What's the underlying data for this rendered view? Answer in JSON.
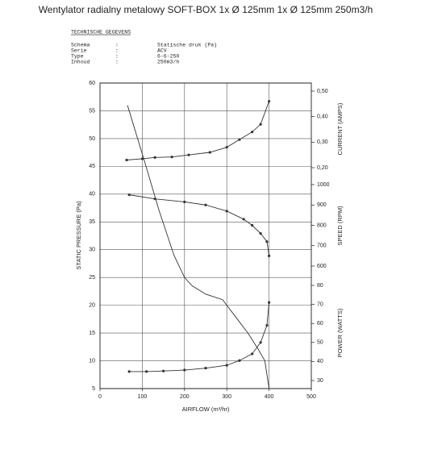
{
  "chart_data": {
    "type": "line",
    "title": "Wentylator radialny metalowy SOFT-BOX 1x Ø 125mm 1x Ø 125mm 250m3/h",
    "header": {
      "heading": "TECHNISCHE GEGEVENS",
      "rows": [
        [
          "Schema",
          ":",
          "Statische druk (Pa)"
        ],
        [
          "Serie",
          ":",
          "ACV"
        ],
        [
          "Type",
          ":",
          "6-6-250"
        ],
        [
          "Inhoud",
          ":",
          "250m3/h"
        ]
      ]
    },
    "xlabel": "AIRFLOW (m³/hr)",
    "ylabel": "STATIC PRESSURE (Pa)",
    "xlim": [
      0,
      500
    ],
    "xticks": [
      0,
      100,
      200,
      300,
      400,
      500
    ],
    "ylim": [
      5,
      60
    ],
    "yticks": [
      5,
      10,
      15,
      20,
      25,
      30,
      35,
      40,
      45,
      50,
      55,
      60
    ],
    "grid": true,
    "right_axes": [
      {
        "id": "current",
        "label": "CURRENT (AMPS)",
        "lim": [
          0.2,
          0.5
        ],
        "ticks": [
          {
            "value": 0.2,
            "label": "0,20"
          },
          {
            "value": 0.3,
            "label": "0,30"
          },
          {
            "value": 0.4,
            "label": "0,40"
          },
          {
            "value": 0.5,
            "label": "0,50"
          }
        ]
      },
      {
        "id": "speed",
        "label": "SPEED (RPM)",
        "lim": [
          600,
          1000
        ],
        "ticks": [
          600,
          700,
          800,
          900,
          1000
        ]
      },
      {
        "id": "power",
        "label": "POWER (WATTS)",
        "lim": [
          30,
          80
        ],
        "ticks": [
          30,
          40,
          50,
          60,
          70,
          80
        ]
      }
    ],
    "series": [
      {
        "axis": "y",
        "color": "#333",
        "markers": false,
        "x": [
          65,
          105,
          140,
          175,
          200,
          218,
          250,
          290,
          320,
          350,
          375,
          390,
          400
        ],
        "values": [
          56,
          46,
          37,
          29,
          25,
          23.5,
          22,
          21,
          18,
          15,
          12,
          10,
          5
        ]
      },
      {
        "axis": "current",
        "color": "#333",
        "markers": true,
        "x": [
          63,
          100,
          130,
          170,
          210,
          260,
          300,
          330,
          360,
          380,
          400
        ],
        "values": [
          0.23,
          0.235,
          0.24,
          0.242,
          0.25,
          0.26,
          0.28,
          0.31,
          0.34,
          0.37,
          0.46
        ]
      },
      {
        "axis": "speed",
        "color": "#333",
        "markers": true,
        "x": [
          69,
          130,
          200,
          250,
          300,
          340,
          360,
          380,
          395,
          400
        ],
        "values": [
          950,
          930,
          915,
          900,
          870,
          830,
          800,
          760,
          720,
          650
        ]
      },
      {
        "axis": "power",
        "color": "#333",
        "markers": true,
        "x": [
          69,
          110,
          150,
          200,
          250,
          300,
          330,
          360,
          380,
          395,
          400
        ],
        "values": [
          34.7,
          34.7,
          35,
          35.5,
          36.5,
          38,
          40.5,
          44,
          50,
          59,
          71
        ]
      }
    ]
  }
}
